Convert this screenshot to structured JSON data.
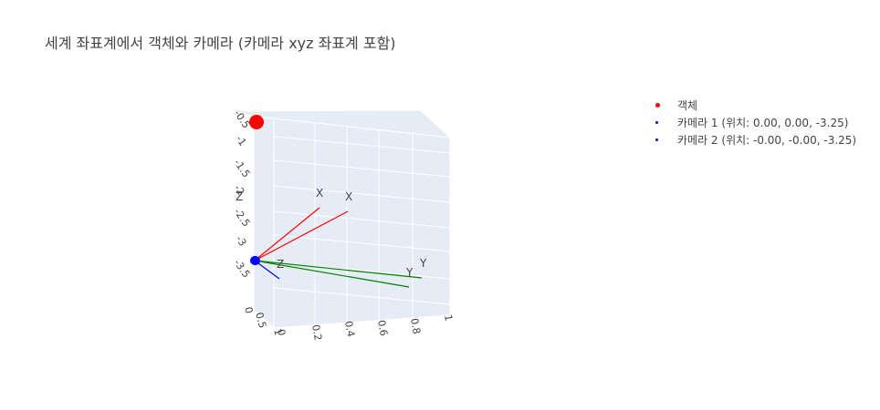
{
  "chart_data": {
    "type": "scatter3d",
    "title": "세계 좌표계에서 객체와 카메라 (카메라 xyz 좌표계 포함)",
    "legend": {
      "placement": "top-right",
      "entries": [
        {
          "name": "객체",
          "color": "#ff0000"
        },
        {
          "name": "카메라 1 (위치: 0.00, 0.00, -3.25)",
          "color": "#0000ff"
        },
        {
          "name": "카메라 2 (위치: -0.00, -0.00, -3.25)",
          "color": "#0000ff"
        }
      ]
    },
    "series": [
      {
        "name": "객체",
        "color": "#ff0000",
        "points": [
          {
            "x": 0,
            "y": 0,
            "z": 0
          }
        ]
      },
      {
        "name": "카메라 1 (위치: 0.00, 0.00, -3.25)",
        "color": "#0000ff",
        "points": [
          {
            "x": 0.0,
            "y": 0.0,
            "z": -3.25
          }
        ]
      },
      {
        "name": "카메라 2 (위치: -0.00, -0.00, -3.25)",
        "color": "#0000ff",
        "points": [
          {
            "x": -0.0,
            "y": -0.0,
            "z": -3.25
          }
        ]
      }
    ],
    "camera_axes": [
      {
        "label": "X",
        "color": "#ff0000"
      },
      {
        "label": "X",
        "color": "#ff0000"
      },
      {
        "label": "Y",
        "color": "#008000"
      },
      {
        "label": "Y",
        "color": "#008000"
      },
      {
        "label": "Z",
        "color": "#0000ff"
      }
    ],
    "z_axis": {
      "label": "Z",
      "ticks": [
        "-0.5",
        "-1",
        "-1.5",
        "-2",
        "-2.5",
        "-3",
        "-3.5"
      ]
    },
    "x_axis": {
      "ticks": [
        "0",
        "0.5",
        "1"
      ]
    },
    "y_axis": {
      "ticks": [
        "0",
        "0.2",
        "0.4",
        "0.6",
        "0.8",
        "1"
      ]
    },
    "scene_background": "#e5ecf6"
  }
}
